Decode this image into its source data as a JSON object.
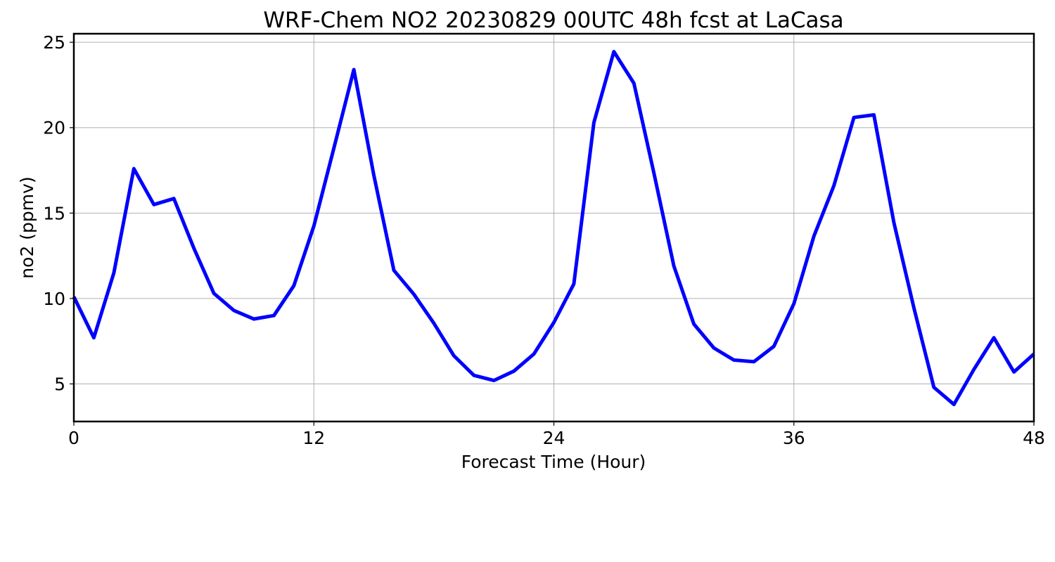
{
  "chart_data": {
    "type": "line",
    "title": "WRF-Chem NO2  20230829 00UTC 48h fcst at LaCasa",
    "xlabel": "Forecast Time (Hour)",
    "ylabel": "no2  (ppmv)",
    "xlim": [
      0,
      48
    ],
    "ylim": [
      2.8,
      25.5
    ],
    "xticks": [
      0,
      12,
      24,
      36,
      48
    ],
    "yticks": [
      5,
      10,
      15,
      20,
      25
    ],
    "grid": true,
    "series": [
      {
        "color": "#0000ff",
        "x": [
          0,
          1,
          2,
          3,
          4,
          5,
          6,
          7,
          8,
          9,
          10,
          11,
          12,
          13,
          14,
          15,
          16,
          17,
          18,
          19,
          20,
          21,
          22,
          23,
          24,
          25,
          26,
          27,
          28,
          29,
          30,
          31,
          32,
          33,
          34,
          35,
          36,
          37,
          38,
          39,
          40,
          41,
          42,
          43,
          44,
          45,
          46,
          47,
          48
        ],
        "y": [
          10.1,
          7.7,
          11.5,
          17.6,
          15.5,
          15.85,
          12.95,
          10.3,
          9.3,
          8.8,
          9.0,
          10.75,
          14.25,
          18.8,
          23.4,
          17.2,
          11.65,
          10.25,
          8.55,
          6.65,
          5.5,
          5.2,
          5.75,
          6.75,
          8.6,
          10.85,
          20.3,
          24.45,
          22.6,
          17.35,
          11.9,
          8.5,
          7.1,
          6.4,
          6.3,
          7.2,
          9.7,
          13.65,
          16.6,
          20.6,
          20.75,
          14.45,
          9.45,
          4.8,
          3.8,
          5.85,
          7.7,
          5.7,
          6.75
        ]
      }
    ]
  }
}
